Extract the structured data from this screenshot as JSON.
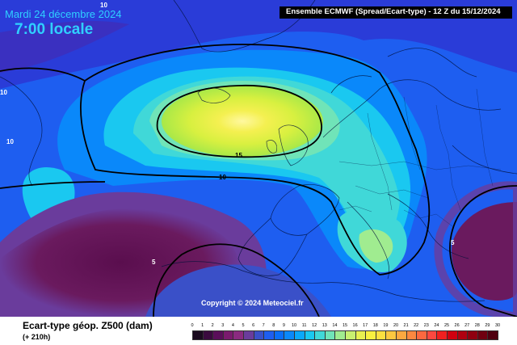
{
  "header": {
    "date": "Mardi 24 décembre 2024",
    "local_time": "7:00 locale",
    "model_info": "Ensemble ECMWF  (Spread/Ecart-type) - 12 Z du 15/12/2024"
  },
  "copyright": "Copyright © 2024 Meteociel.fr",
  "parameter": {
    "title": "Ecart-type géop. Z500 (dam)",
    "lead_time": "(+ 210h)"
  },
  "contour_labels": [
    "10",
    "10",
    "10",
    "15",
    "10",
    "5",
    "5"
  ],
  "legend": {
    "ticks": [
      "0",
      "1",
      "2",
      "3",
      "4",
      "5",
      "6",
      "7",
      "8",
      "9",
      "10",
      "11",
      "12",
      "13",
      "14",
      "15",
      "16",
      "17",
      "18",
      "19",
      "20",
      "21",
      "22",
      "23",
      "24",
      "25",
      "26",
      "27",
      "28",
      "29",
      "30"
    ],
    "colors": [
      "#1a0a1e",
      "#3a0a3e",
      "#5a0e5a",
      "#7a1a6e",
      "#8a2a80",
      "#6a3c9c",
      "#3a50c8",
      "#1e5ef0",
      "#0a6ef8",
      "#0a88fa",
      "#0aa8fa",
      "#1ac8f0",
      "#40d8d8",
      "#70e4b8",
      "#a0ec90",
      "#c8f070",
      "#e8f050",
      "#f8f040",
      "#fce040",
      "#fcc840",
      "#fca840",
      "#fc8840",
      "#fc6840",
      "#fc4840",
      "#f02020",
      "#d00010",
      "#b00010",
      "#900010",
      "#700010",
      "#500010"
    ]
  }
}
